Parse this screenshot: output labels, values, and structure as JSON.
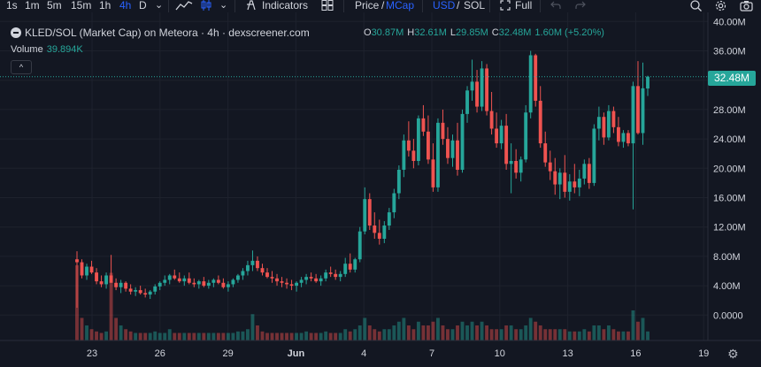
{
  "toolbar": {
    "intervals": [
      {
        "label": "1s",
        "active": false
      },
      {
        "label": "1m",
        "active": false
      },
      {
        "label": "5m",
        "active": false
      },
      {
        "label": "15m",
        "active": false
      },
      {
        "label": "1h",
        "active": false
      },
      {
        "label": "4h",
        "active": true
      },
      {
        "label": "D",
        "active": false
      }
    ],
    "indicators_label": "Indicators",
    "price_label": "Price",
    "mcap_label": "MCap",
    "usd_label": "USD",
    "sol_label": "SOL",
    "full_label": "Full",
    "chevron_glyph": "⌄",
    "icons": [
      "chevron-down-icon",
      "line-chart-icon",
      "candles-icon",
      "indicators-icon",
      "layouts-icon",
      "fullscreen-icon",
      "undo-icon",
      "redo-icon",
      "search-icon",
      "settings-icon",
      "camera-icon"
    ]
  },
  "legend": {
    "title": "KLED/SOL (Market Cap) on Meteora · 4h · dexscreener.com",
    "ohlc": {
      "o": "30.87M",
      "h": "32.61M",
      "l": "29.85M",
      "c": "32.48M",
      "change": "1.60M (+5.20%)"
    },
    "volume_label": "Volume",
    "volume_value": "39.894K",
    "collapse_glyph": "^"
  },
  "current_price_label": "32.48M",
  "settings_glyph": "⚙",
  "colors": {
    "background": "#131722",
    "up": "#26a69a",
    "down": "#ef5350",
    "grid": "#1e222d",
    "text": "#d1d4dc",
    "accent": "#2962ff"
  },
  "chart_data": {
    "type": "candlestick",
    "title": "KLED/SOL (Market Cap) on Meteora · 4h · dexscreener.com",
    "interval": "4h",
    "yaxis": {
      "ticks": [
        "40.00M",
        "36.00M",
        "32.00M",
        "28.00M",
        "24.00M",
        "20.00M",
        "16.00M",
        "12.00M",
        "8.00M",
        "4.00M",
        "0.0000"
      ],
      "range_millions": [
        -4,
        40
      ]
    },
    "xaxis": {
      "ticks": [
        "23",
        "26",
        "29",
        "Jun",
        "4",
        "7",
        "10",
        "13",
        "16",
        "19"
      ],
      "start_day": "May 22",
      "end_day": "Jun 19"
    },
    "grid": true,
    "last_close_millions": 32.48,
    "candles_millions_ohlc": [
      [
        7.6,
        8.7,
        1.0,
        7.2
      ],
      [
        7.2,
        7.6,
        5.0,
        5.4
      ],
      [
        5.4,
        7.0,
        4.8,
        6.6
      ],
      [
        6.6,
        7.4,
        5.6,
        5.8
      ],
      [
        5.8,
        6.4,
        4.2,
        4.6
      ],
      [
        4.6,
        5.4,
        3.8,
        4.2
      ],
      [
        4.2,
        5.8,
        3.6,
        5.4
      ],
      [
        5.4,
        8.2,
        4.6,
        4.4
      ],
      [
        4.4,
        5.0,
        3.4,
        3.8
      ],
      [
        3.8,
        4.8,
        3.0,
        4.4
      ],
      [
        4.4,
        4.6,
        3.2,
        3.6
      ],
      [
        3.6,
        4.2,
        2.8,
        3.2
      ],
      [
        3.2,
        3.8,
        2.6,
        3.4
      ],
      [
        3.4,
        4.0,
        2.8,
        3.0
      ],
      [
        3.0,
        3.6,
        2.4,
        2.8
      ],
      [
        2.8,
        3.4,
        2.2,
        3.2
      ],
      [
        3.2,
        4.2,
        2.8,
        3.9
      ],
      [
        3.9,
        4.6,
        3.4,
        4.4
      ],
      [
        4.4,
        5.4,
        4.0,
        4.8
      ],
      [
        4.8,
        5.6,
        4.2,
        5.4
      ],
      [
        5.4,
        6.2,
        4.8,
        5.0
      ],
      [
        5.0,
        5.8,
        4.4,
        4.6
      ],
      [
        4.6,
        5.4,
        4.0,
        5.0
      ],
      [
        5.0,
        5.8,
        4.2,
        4.4
      ],
      [
        4.4,
        5.0,
        3.8,
        4.2
      ],
      [
        4.2,
        4.8,
        3.6,
        4.6
      ],
      [
        4.6,
        5.2,
        3.8,
        4.0
      ],
      [
        4.0,
        4.8,
        3.6,
        4.4
      ],
      [
        4.4,
        5.0,
        3.8,
        4.8
      ],
      [
        4.8,
        5.4,
        4.2,
        4.4
      ],
      [
        4.4,
        5.0,
        3.6,
        3.8
      ],
      [
        3.8,
        4.6,
        3.2,
        4.2
      ],
      [
        4.2,
        5.0,
        3.8,
        4.8
      ],
      [
        4.8,
        5.6,
        4.4,
        5.4
      ],
      [
        5.4,
        6.4,
        4.8,
        6.0
      ],
      [
        6.0,
        7.4,
        5.4,
        6.8
      ],
      [
        6.8,
        8.8,
        6.0,
        7.4
      ],
      [
        7.4,
        8.0,
        6.0,
        6.4
      ],
      [
        6.4,
        7.0,
        5.4,
        5.8
      ],
      [
        5.8,
        6.4,
        5.0,
        5.2
      ],
      [
        5.2,
        6.0,
        4.4,
        5.0
      ],
      [
        5.0,
        5.6,
        4.0,
        4.6
      ],
      [
        4.6,
        5.2,
        3.8,
        4.4
      ],
      [
        4.4,
        5.0,
        3.6,
        4.2
      ],
      [
        4.2,
        4.8,
        3.4,
        4.0
      ],
      [
        4.0,
        4.6,
        3.2,
        4.4
      ],
      [
        4.4,
        5.2,
        3.8,
        4.8
      ],
      [
        4.8,
        5.6,
        4.2,
        5.2
      ],
      [
        5.2,
        5.8,
        4.6,
        5.0
      ],
      [
        5.0,
        5.6,
        4.4,
        4.6
      ],
      [
        4.6,
        5.4,
        4.0,
        5.0
      ],
      [
        5.0,
        6.2,
        4.6,
        5.8
      ],
      [
        5.8,
        6.6,
        5.2,
        5.6
      ],
      [
        5.6,
        6.2,
        4.8,
        5.2
      ],
      [
        5.2,
        6.0,
        4.6,
        5.6
      ],
      [
        5.6,
        7.8,
        5.2,
        7.0
      ],
      [
        7.0,
        8.4,
        5.8,
        6.2
      ],
      [
        6.2,
        7.8,
        5.8,
        7.6
      ],
      [
        7.6,
        12.0,
        7.2,
        11.4
      ],
      [
        11.4,
        17.4,
        11.0,
        15.8
      ],
      [
        15.8,
        16.6,
        11.6,
        12.2
      ],
      [
        12.2,
        14.0,
        10.4,
        11.2
      ],
      [
        11.2,
        13.0,
        9.6,
        10.4
      ],
      [
        10.4,
        12.8,
        9.8,
        12.2
      ],
      [
        12.2,
        14.6,
        11.6,
        14.0
      ],
      [
        14.0,
        17.2,
        13.2,
        16.6
      ],
      [
        16.6,
        20.4,
        15.8,
        19.8
      ],
      [
        19.8,
        24.6,
        18.8,
        23.8
      ],
      [
        23.8,
        26.4,
        21.6,
        22.4
      ],
      [
        22.4,
        24.0,
        20.0,
        21.0
      ],
      [
        21.0,
        27.2,
        20.4,
        26.8
      ],
      [
        26.8,
        28.6,
        24.4,
        25.0
      ],
      [
        25.0,
        27.2,
        20.6,
        21.2
      ],
      [
        21.2,
        23.4,
        16.8,
        17.4
      ],
      [
        17.4,
        26.8,
        16.8,
        26.2
      ],
      [
        26.2,
        28.0,
        23.2,
        24.0
      ],
      [
        24.0,
        25.6,
        20.6,
        21.4
      ],
      [
        21.4,
        24.6,
        20.2,
        23.8
      ],
      [
        23.8,
        26.2,
        19.0,
        19.8
      ],
      [
        19.8,
        28.0,
        19.4,
        27.4
      ],
      [
        27.4,
        31.2,
        26.2,
        30.6
      ],
      [
        30.6,
        34.8,
        29.2,
        31.8
      ],
      [
        31.8,
        33.4,
        27.6,
        28.4
      ],
      [
        28.4,
        34.6,
        27.8,
        33.6
      ],
      [
        33.6,
        34.2,
        27.2,
        27.8
      ],
      [
        27.8,
        30.4,
        24.6,
        25.4
      ],
      [
        25.4,
        27.6,
        22.8,
        23.4
      ],
      [
        23.4,
        26.6,
        22.6,
        25.8
      ],
      [
        25.8,
        27.4,
        19.8,
        20.6
      ],
      [
        20.6,
        23.4,
        16.6,
        21.0
      ],
      [
        21.0,
        22.6,
        18.6,
        19.4
      ],
      [
        19.4,
        21.6,
        18.2,
        21.2
      ],
      [
        21.2,
        28.6,
        20.8,
        27.6
      ],
      [
        27.6,
        36.0,
        26.8,
        35.4
      ],
      [
        35.4,
        35.6,
        28.4,
        29.2
      ],
      [
        29.2,
        31.2,
        22.8,
        23.4
      ],
      [
        23.4,
        25.0,
        20.2,
        20.8
      ],
      [
        20.8,
        22.4,
        18.4,
        19.6
      ],
      [
        19.6,
        21.4,
        16.4,
        17.8
      ],
      [
        17.8,
        20.0,
        15.8,
        19.4
      ],
      [
        19.4,
        21.8,
        16.0,
        16.8
      ],
      [
        16.8,
        19.2,
        15.6,
        18.2
      ],
      [
        18.2,
        20.6,
        16.6,
        17.4
      ],
      [
        17.4,
        19.8,
        16.2,
        18.6
      ],
      [
        18.6,
        21.2,
        17.8,
        20.6
      ],
      [
        20.6,
        21.4,
        17.2,
        18.0
      ],
      [
        18.0,
        26.0,
        17.6,
        25.4
      ],
      [
        25.4,
        28.4,
        23.8,
        27.0
      ],
      [
        27.0,
        27.6,
        23.2,
        24.2
      ],
      [
        24.2,
        28.6,
        23.8,
        27.8
      ],
      [
        27.8,
        28.4,
        24.8,
        25.6
      ],
      [
        25.6,
        27.0,
        23.0,
        23.6
      ],
      [
        23.6,
        25.2,
        22.8,
        24.8
      ],
      [
        24.8,
        25.2,
        23.0,
        23.4
      ],
      [
        23.4,
        31.8,
        14.4,
        31.2
      ],
      [
        31.2,
        34.6,
        24.6,
        24.8
      ],
      [
        24.8,
        34.4,
        23.2,
        30.9
      ],
      [
        30.87,
        32.61,
        29.85,
        32.48
      ]
    ],
    "volumes_relative": [
      1.0,
      0.3,
      0.2,
      0.15,
      0.12,
      0.1,
      0.12,
      0.9,
      0.3,
      0.2,
      0.15,
      0.12,
      0.1,
      0.1,
      0.1,
      0.1,
      0.12,
      0.1,
      0.1,
      0.15,
      0.1,
      0.1,
      0.1,
      0.1,
      0.1,
      0.1,
      0.1,
      0.1,
      0.1,
      0.1,
      0.1,
      0.1,
      0.1,
      0.12,
      0.12,
      0.15,
      0.35,
      0.2,
      0.12,
      0.1,
      0.1,
      0.1,
      0.1,
      0.1,
      0.1,
      0.1,
      0.1,
      0.12,
      0.1,
      0.1,
      0.1,
      0.12,
      0.1,
      0.1,
      0.1,
      0.15,
      0.12,
      0.15,
      0.2,
      0.3,
      0.2,
      0.15,
      0.12,
      0.15,
      0.15,
      0.2,
      0.25,
      0.3,
      0.2,
      0.15,
      0.25,
      0.2,
      0.2,
      0.25,
      0.3,
      0.2,
      0.15,
      0.15,
      0.2,
      0.25,
      0.2,
      0.25,
      0.2,
      0.25,
      0.2,
      0.15,
      0.15,
      0.15,
      0.2,
      0.2,
      0.15,
      0.15,
      0.2,
      0.3,
      0.25,
      0.2,
      0.15,
      0.15,
      0.15,
      0.15,
      0.15,
      0.12,
      0.12,
      0.12,
      0.15,
      0.12,
      0.2,
      0.2,
      0.15,
      0.2,
      0.15,
      0.12,
      0.12,
      0.12,
      0.4,
      0.25,
      0.3,
      0.12
    ]
  }
}
